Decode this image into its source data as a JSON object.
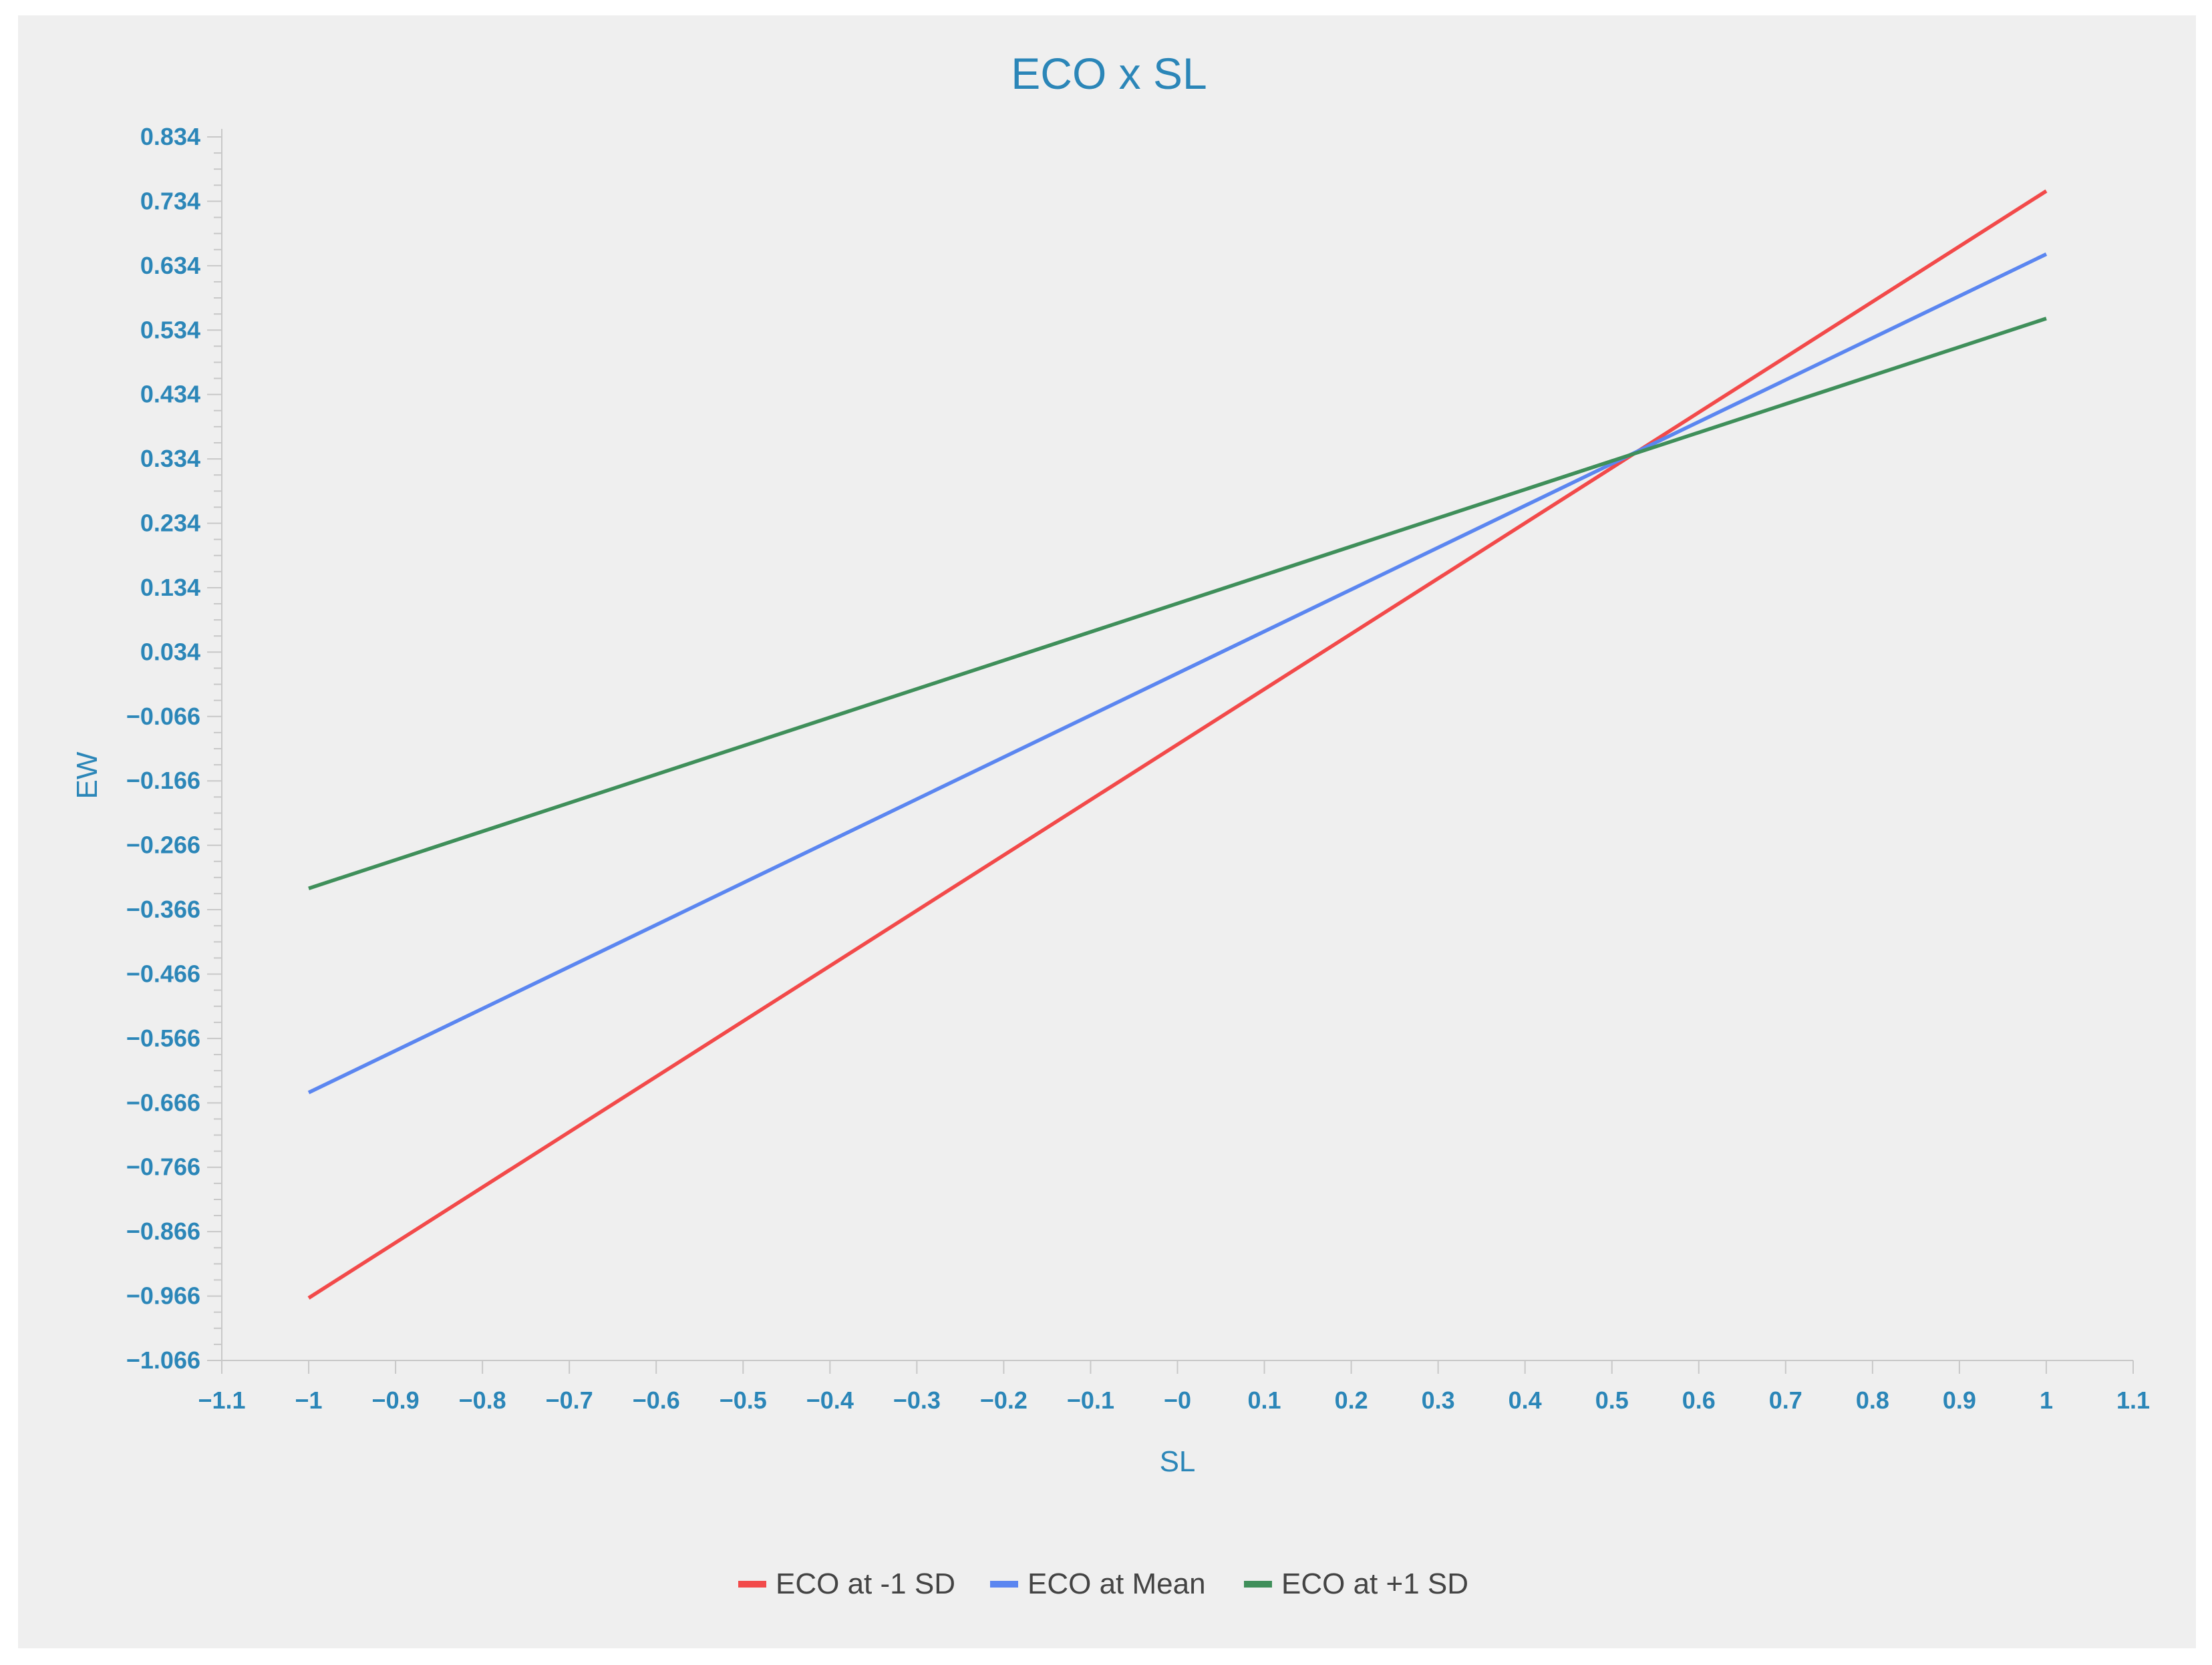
{
  "chart_data": {
    "type": "line",
    "title": "ECO x SL",
    "xlabel": "SL",
    "ylabel": "EW",
    "xlim": [
      -1.1,
      1.1
    ],
    "ylim": [
      -1.066,
      0.834
    ],
    "x_ticks": [
      "−1.1",
      "−1",
      "−0.9",
      "−0.8",
      "−0.7",
      "−0.6",
      "−0.5",
      "−0.4",
      "−0.3",
      "−0.2",
      "−0.1",
      "−0",
      "0.1",
      "0.2",
      "0.3",
      "0.4",
      "0.5",
      "0.6",
      "0.7",
      "0.8",
      "0.9",
      "1",
      "1.1"
    ],
    "x_tick_values": [
      -1.1,
      -1,
      -0.9,
      -0.8,
      -0.7,
      -0.6,
      -0.5,
      -0.4,
      -0.3,
      -0.2,
      -0.1,
      0,
      0.1,
      0.2,
      0.3,
      0.4,
      0.5,
      0.6,
      0.7,
      0.8,
      0.9,
      1,
      1.1
    ],
    "y_ticks": [
      "0.834",
      "0.734",
      "0.634",
      "0.534",
      "0.434",
      "0.334",
      "0.234",
      "0.134",
      "0.034",
      "−0.066",
      "−0.166",
      "−0.266",
      "−0.366",
      "−0.466",
      "−0.566",
      "−0.666",
      "−0.766",
      "−0.866",
      "−0.966",
      "−1.066"
    ],
    "y_tick_values": [
      0.834,
      0.734,
      0.634,
      0.534,
      0.434,
      0.334,
      0.234,
      0.134,
      0.034,
      -0.066,
      -0.166,
      -0.266,
      -0.366,
      -0.466,
      -0.566,
      -0.666,
      -0.766,
      -0.866,
      -0.966,
      -1.066
    ],
    "series": [
      {
        "name": "ECO at -1 SD",
        "color": "#f24a4a",
        "x": [
          -1,
          1
        ],
        "y": [
          -0.969,
          0.75
        ]
      },
      {
        "name": "ECO at Mean",
        "color": "#5b86f0",
        "x": [
          -1,
          1
        ],
        "y": [
          -0.65,
          0.652
        ]
      },
      {
        "name": "ECO at +1 SD",
        "color": "#3f8f5a",
        "x": [
          -1,
          1
        ],
        "y": [
          -0.333,
          0.552
        ]
      }
    ],
    "grid": false,
    "legend_position": "bottom-center"
  },
  "colors": {
    "axis": "#c8c8c8",
    "text": "#2b86b8",
    "panel_background": "#efefef"
  }
}
